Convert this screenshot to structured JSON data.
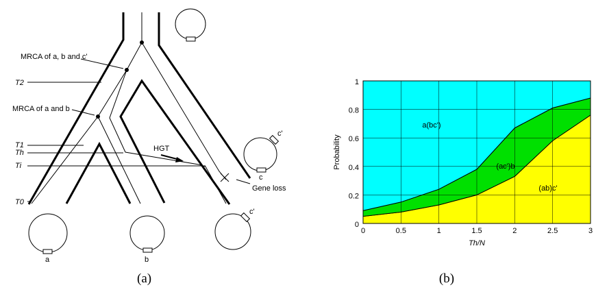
{
  "diagram": {
    "mrca_abc": "MRCA of a, b and c'",
    "mrca_ab": "MRCA of a and b",
    "times": [
      "T2",
      "T1",
      "Th",
      "Ti",
      "T0"
    ],
    "hgt": "HGT",
    "gene_loss": "Gene loss",
    "leaves": [
      "a",
      "b",
      "c'"
    ],
    "mid_labels": [
      "c'",
      "c"
    ],
    "caption": "(a)"
  },
  "chart_data": {
    "type": "stacked_area",
    "caption": "(b)",
    "x_label": "Th/N",
    "y_label": "Probability",
    "x": [
      0,
      0.5,
      1,
      1.5,
      2,
      2.5,
      3
    ],
    "series": [
      {
        "name": "(ab)c'",
        "color": "#ffff00",
        "values": [
          0.05,
          0.08,
          0.13,
          0.2,
          0.33,
          0.58,
          0.76
        ]
      },
      {
        "name": "(ac')b",
        "color": "#00e000",
        "values": [
          0.04,
          0.07,
          0.11,
          0.18,
          0.34,
          0.23,
          0.12
        ]
      },
      {
        "name": "a(bc')",
        "color": "#00ffff",
        "values": [
          0.91,
          0.85,
          0.76,
          0.62,
          0.33,
          0.19,
          0.12
        ]
      }
    ],
    "xlim": [
      0,
      3
    ],
    "ylim": [
      0,
      1
    ],
    "xticks": [
      0,
      0.5,
      1,
      1.5,
      2,
      2.5,
      3
    ],
    "yticks": [
      0,
      0.2,
      0.4,
      0.6,
      0.8,
      1
    ],
    "grid": true
  }
}
